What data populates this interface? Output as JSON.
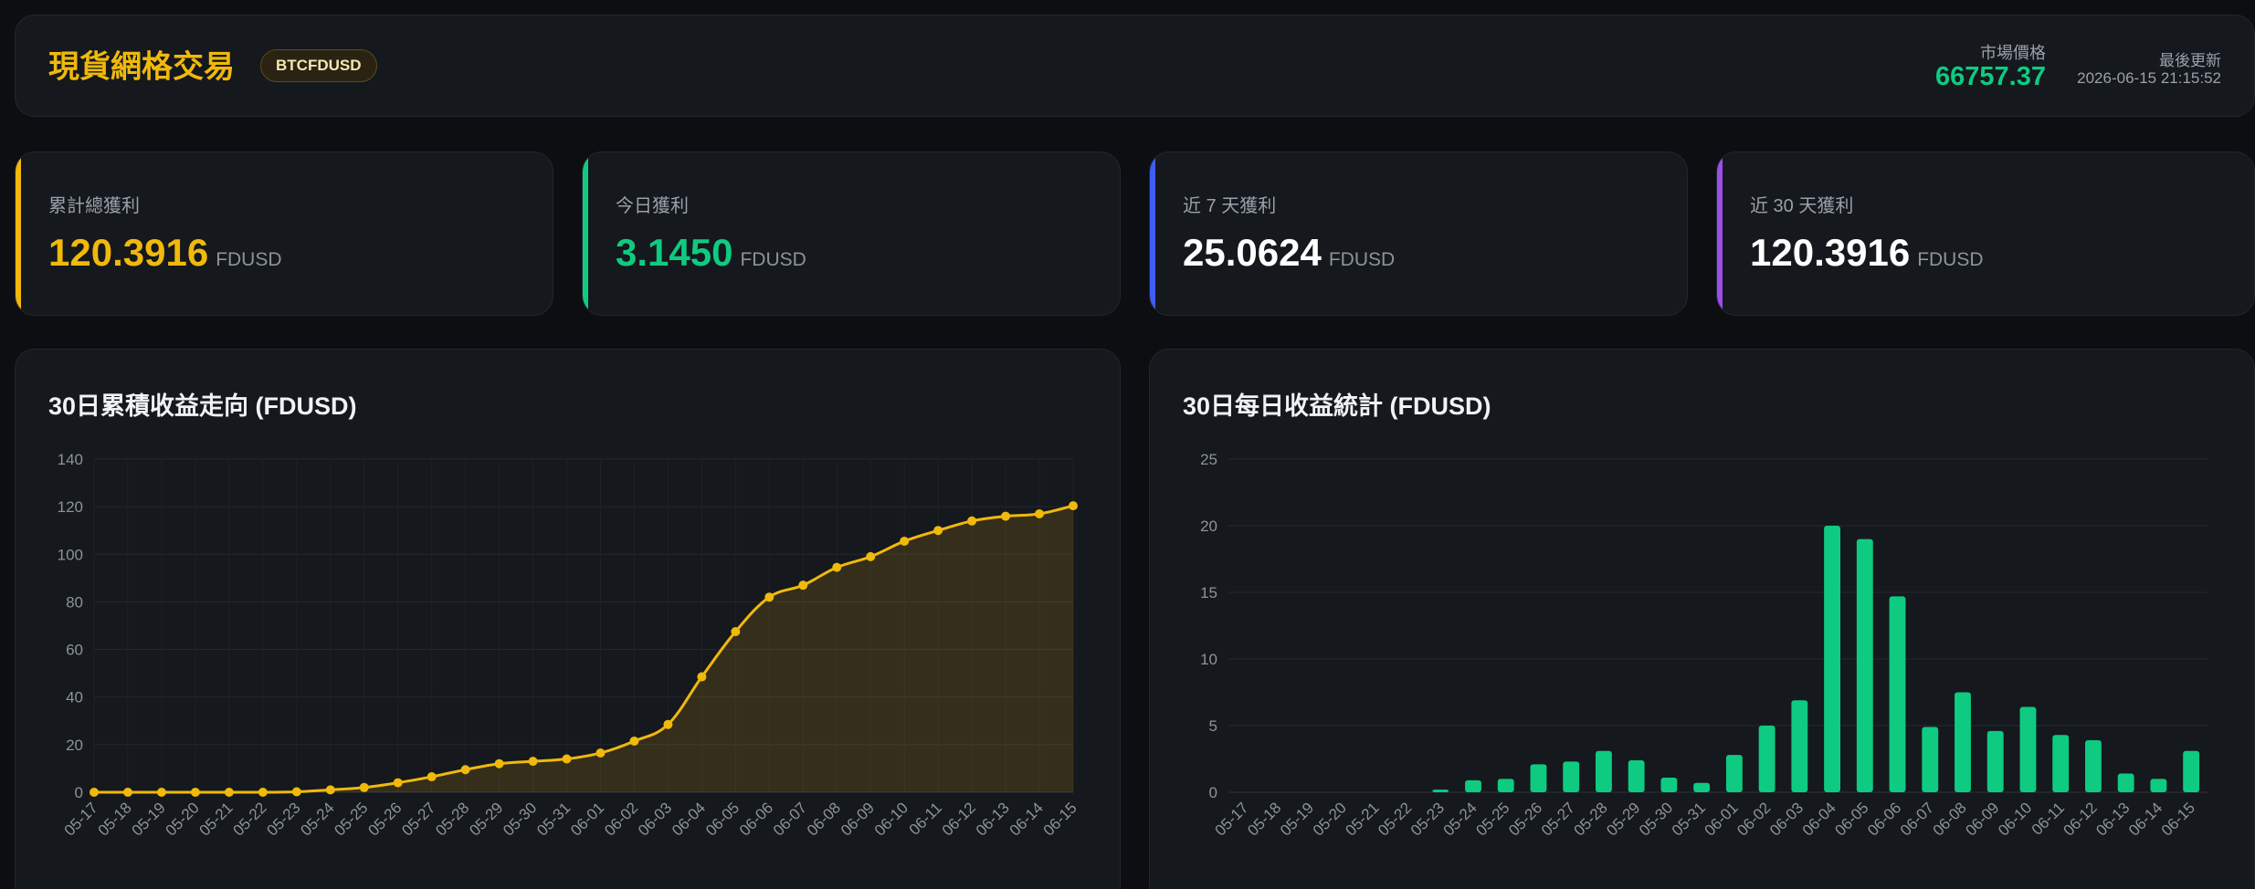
{
  "header": {
    "title": "現貨網格交易",
    "pair": "BTCFDUSD",
    "market_price_label": "市場價格",
    "market_price": "66757.37",
    "last_update_label": "最後更新",
    "last_update": "2026-06-15 21:15:52"
  },
  "stats": {
    "total": {
      "label": "累計總獲利",
      "value": "120.3916",
      "unit": "FDUSD",
      "accent": "#f0b90b"
    },
    "today": {
      "label": "今日獲利",
      "value": "3.1450",
      "unit": "FDUSD",
      "accent": "#0ecb81"
    },
    "week": {
      "label": "近 7 天獲利",
      "value": "25.0624",
      "unit": "FDUSD",
      "accent": "#3f5cf5"
    },
    "month": {
      "label": "近 30 天獲利",
      "value": "120.3916",
      "unit": "FDUSD",
      "accent": "#9b4ee8"
    }
  },
  "chart_data": [
    {
      "type": "line",
      "title": "30日累積收益走向 (FDUSD)",
      "color": "#f0b90b",
      "categories": [
        "05-17",
        "05-18",
        "05-19",
        "05-20",
        "05-21",
        "05-22",
        "05-23",
        "05-24",
        "05-25",
        "05-26",
        "05-27",
        "05-28",
        "05-29",
        "05-30",
        "05-31",
        "06-01",
        "06-02",
        "06-03",
        "06-04",
        "06-05",
        "06-06",
        "06-07",
        "06-08",
        "06-09",
        "06-10",
        "06-11",
        "06-12",
        "06-13",
        "06-14",
        "06-15"
      ],
      "values": [
        0,
        0,
        0,
        0,
        0,
        0,
        0.2,
        1,
        2,
        4,
        6.5,
        9.5,
        12,
        13,
        14,
        16.5,
        21.5,
        28.5,
        48.5,
        67.5,
        82,
        87,
        94.5,
        99,
        105.5,
        110,
        114,
        116,
        117,
        120.4
      ],
      "ylim": [
        0,
        140
      ],
      "yticks": [
        0,
        20,
        40,
        60,
        80,
        100,
        120,
        140
      ],
      "grid": true,
      "area_fill": true
    },
    {
      "type": "bar",
      "title": "30日每日收益統計 (FDUSD)",
      "color": "#0ecb81",
      "categories": [
        "05-17",
        "05-18",
        "05-19",
        "05-20",
        "05-21",
        "05-22",
        "05-23",
        "05-24",
        "05-25",
        "05-26",
        "05-27",
        "05-28",
        "05-29",
        "05-30",
        "05-31",
        "06-01",
        "06-02",
        "06-03",
        "06-04",
        "06-05",
        "06-06",
        "06-07",
        "06-08",
        "06-09",
        "06-10",
        "06-11",
        "06-12",
        "06-13",
        "06-14",
        "06-15"
      ],
      "values": [
        0,
        0,
        0,
        0,
        0,
        0,
        0.2,
        0.9,
        1,
        2.1,
        2.3,
        3.1,
        2.4,
        1.1,
        0.7,
        2.8,
        5,
        6.9,
        20,
        19,
        14.7,
        4.9,
        7.5,
        4.6,
        6.4,
        4.3,
        3.9,
        1.4,
        1,
        3.1
      ],
      "ylim": [
        0,
        25
      ],
      "yticks": [
        0,
        5,
        10,
        15,
        20,
        25
      ],
      "grid": true
    }
  ]
}
